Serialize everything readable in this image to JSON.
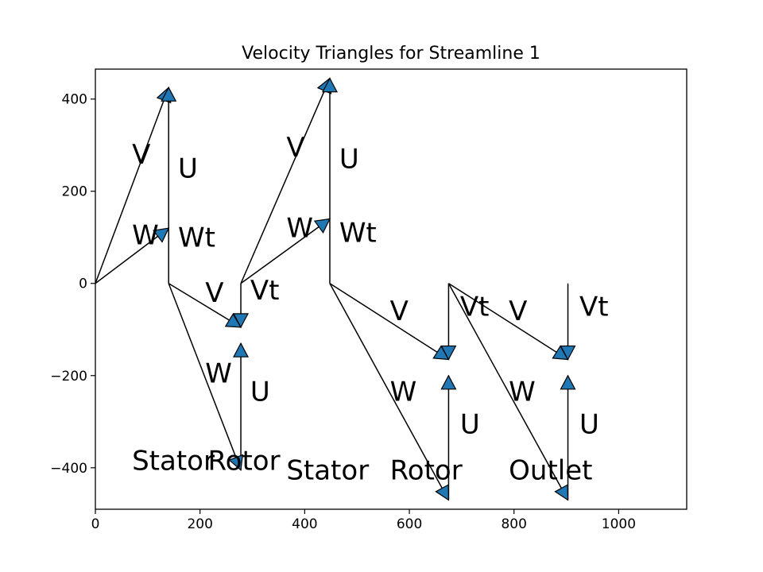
{
  "chart_data": {
    "type": "line",
    "title": "Velocity Triangles for Streamline 1",
    "xlabel": "",
    "ylabel": "",
    "xlim": [
      0,
      1130
    ],
    "ylim": [
      -490,
      465
    ],
    "x_ticks": [
      0,
      200,
      400,
      600,
      800,
      1000
    ],
    "y_ticks": [
      400,
      200,
      0,
      -200,
      -400
    ],
    "y_tick_labels": [
      "400",
      "200",
      "0",
      "−200",
      "−400"
    ],
    "grid": false,
    "legend": "none",
    "arrow_color": "#1f77b4",
    "segments": [
      {
        "from": [
          0,
          0
        ],
        "to": [
          140,
          425
        ],
        "arrow": true
      },
      {
        "from": [
          0,
          0
        ],
        "to": [
          140,
          120
        ],
        "arrow": true
      },
      {
        "from": [
          140,
          120
        ],
        "to": [
          140,
          425
        ],
        "arrow": true
      },
      {
        "from": [
          140,
          0
        ],
        "to": [
          140,
          120
        ],
        "arrow": false
      },
      {
        "from": [
          140,
          0
        ],
        "to": [
          278,
          -95
        ],
        "arrow": true
      },
      {
        "from": [
          140,
          0
        ],
        "to": [
          278,
          -405
        ],
        "arrow": true
      },
      {
        "from": [
          278,
          -405
        ],
        "to": [
          278,
          -130
        ],
        "arrow": true
      },
      {
        "from": [
          278,
          0
        ],
        "to": [
          278,
          -95
        ],
        "arrow": true
      },
      {
        "from": [
          278,
          0
        ],
        "to": [
          448,
          445
        ],
        "arrow": true
      },
      {
        "from": [
          278,
          0
        ],
        "to": [
          448,
          140
        ],
        "arrow": true
      },
      {
        "from": [
          448,
          140
        ],
        "to": [
          448,
          445
        ],
        "arrow": true
      },
      {
        "from": [
          448,
          0
        ],
        "to": [
          448,
          140
        ],
        "arrow": false
      },
      {
        "from": [
          448,
          0
        ],
        "to": [
          675,
          -165
        ],
        "arrow": true
      },
      {
        "from": [
          448,
          0
        ],
        "to": [
          675,
          -470
        ],
        "arrow": true
      },
      {
        "from": [
          675,
          -470
        ],
        "to": [
          675,
          -200
        ],
        "arrow": true
      },
      {
        "from": [
          675,
          0
        ],
        "to": [
          675,
          -165
        ],
        "arrow": true
      },
      {
        "from": [
          675,
          0
        ],
        "to": [
          903,
          -165
        ],
        "arrow": true
      },
      {
        "from": [
          675,
          0
        ],
        "to": [
          903,
          -470
        ],
        "arrow": true
      },
      {
        "from": [
          903,
          -470
        ],
        "to": [
          903,
          -200
        ],
        "arrow": true
      },
      {
        "from": [
          903,
          0
        ],
        "to": [
          903,
          -165
        ],
        "arrow": true
      }
    ],
    "labels": [
      {
        "text": "V",
        "x": 70,
        "y": 260
      },
      {
        "text": "U",
        "x": 158,
        "y": 230
      },
      {
        "text": "W",
        "x": 70,
        "y": 85
      },
      {
        "text": "Wt",
        "x": 158,
        "y": 80
      },
      {
        "text": "V",
        "x": 210,
        "y": -40
      },
      {
        "text": "Vt",
        "x": 296,
        "y": -35
      },
      {
        "text": "W",
        "x": 210,
        "y": -215
      },
      {
        "text": "U",
        "x": 296,
        "y": -255
      },
      {
        "text": "V",
        "x": 365,
        "y": 275
      },
      {
        "text": "U",
        "x": 466,
        "y": 250
      },
      {
        "text": "W",
        "x": 365,
        "y": 100
      },
      {
        "text": "Wt",
        "x": 466,
        "y": 90
      },
      {
        "text": "V",
        "x": 563,
        "y": -80
      },
      {
        "text": "Vt",
        "x": 697,
        "y": -70
      },
      {
        "text": "W",
        "x": 563,
        "y": -255
      },
      {
        "text": "U",
        "x": 697,
        "y": -325
      },
      {
        "text": "V",
        "x": 790,
        "y": -80
      },
      {
        "text": "Vt",
        "x": 925,
        "y": -70
      },
      {
        "text": "W",
        "x": 790,
        "y": -255
      },
      {
        "text": "U",
        "x": 925,
        "y": -325
      },
      {
        "text": "Stator",
        "x": 70,
        "y": -405
      },
      {
        "text": "Rotor",
        "x": 215,
        "y": -405
      },
      {
        "text": "Stator",
        "x": 365,
        "y": -425
      },
      {
        "text": "Rotor",
        "x": 563,
        "y": -425
      },
      {
        "text": "Outlet",
        "x": 790,
        "y": -425
      }
    ]
  }
}
